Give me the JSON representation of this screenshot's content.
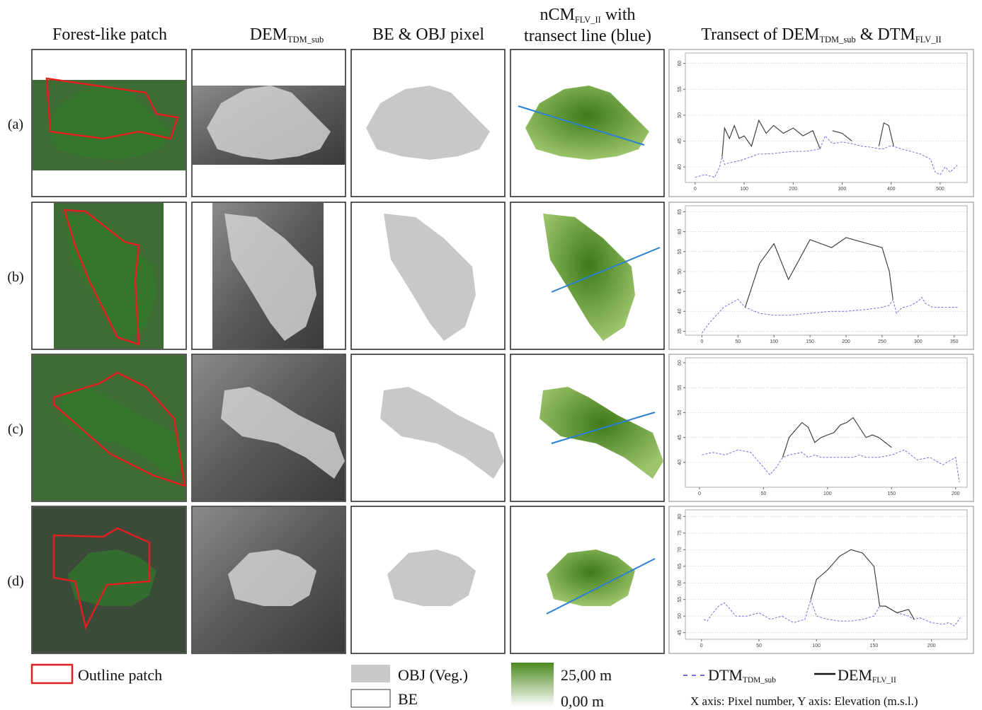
{
  "column_headers": [
    [
      [
        {
          "text": "Forest-like patch",
          "sub": false
        }
      ]
    ],
    [
      [
        {
          "text": "DEM",
          "sub": false
        },
        {
          "text": "TDM_sub",
          "sub": true
        }
      ]
    ],
    [
      [
        {
          "text": "BE & OBJ pixel",
          "sub": false
        }
      ]
    ],
    [
      [
        {
          "text": "nCM",
          "sub": false
        },
        {
          "text": "FLV_II",
          "sub": true
        },
        {
          "text": " with",
          "sub": false
        }
      ],
      [
        {
          "text": "transect line (blue)",
          "sub": false
        }
      ]
    ],
    [
      [
        {
          "text": "Transect of DEM",
          "sub": false
        },
        {
          "text": "TDM_sub",
          "sub": true
        },
        {
          "text": " & DTM",
          "sub": false
        },
        {
          "text": "FLV_II",
          "sub": true
        }
      ]
    ]
  ],
  "row_labels": [
    "(a)",
    "(b)",
    "(c)",
    "(d)"
  ],
  "chart_data": [
    {
      "type": "line",
      "grid": true,
      "x": [
        0,
        20,
        40,
        50,
        55,
        60,
        70,
        80,
        90,
        100,
        115,
        130,
        145,
        160,
        180,
        200,
        220,
        240,
        255,
        265,
        280,
        300,
        320,
        340,
        360,
        375,
        385,
        395,
        405,
        420,
        440,
        460,
        480,
        490,
        500,
        510,
        520,
        535
      ],
      "xlim": [
        -20,
        555
      ],
      "ylim": [
        37,
        62
      ],
      "xticks": [
        0,
        100,
        200,
        300,
        400,
        500
      ],
      "yticks": [
        40,
        45,
        50,
        55,
        60
      ],
      "series": [
        {
          "color": "#7070d8",
          "dashed": true,
          "values": [
            38,
            38.5,
            38,
            40,
            42,
            40.5,
            40.8,
            41,
            41.2,
            41.5,
            42,
            42.5,
            42.5,
            42.6,
            42.8,
            43,
            43,
            43.2,
            43.5,
            46,
            44.5,
            44.8,
            44.5,
            44,
            43.8,
            43.5,
            43.5,
            44,
            44,
            43.5,
            43,
            42.5,
            41.5,
            39,
            38.5,
            40,
            39,
            40.3
          ]
        },
        {
          "color": "#333333",
          "dashed": false,
          "values": [
            null,
            null,
            null,
            null,
            42,
            47.5,
            45.5,
            48,
            45.5,
            46,
            44,
            49,
            46.5,
            48,
            46.5,
            47.5,
            46,
            47,
            43.5,
            null,
            47,
            46.5,
            45,
            null,
            null,
            44,
            48.5,
            48,
            44,
            null,
            null,
            null,
            null,
            null,
            null,
            null,
            null,
            null
          ]
        }
      ]
    },
    {
      "type": "line",
      "grid": true,
      "x": [
        0,
        10,
        20,
        30,
        40,
        50,
        60,
        80,
        100,
        120,
        150,
        180,
        200,
        230,
        250,
        260,
        265,
        270,
        275,
        280,
        290,
        300,
        305,
        310,
        320,
        330,
        340,
        355
      ],
      "xlim": [
        -23,
        368
      ],
      "ylim": [
        34,
        66.5
      ],
      "xticks": [
        0,
        50,
        100,
        150,
        200,
        250,
        300,
        350
      ],
      "yticks": [
        35,
        40,
        45,
        50,
        55,
        60,
        65
      ],
      "series": [
        {
          "color": "#7070d8",
          "dashed": true,
          "values": [
            34.5,
            37,
            39,
            41,
            42,
            43,
            41,
            39.5,
            39,
            39,
            39.5,
            40,
            40,
            40.5,
            41,
            41.5,
            43,
            39.5,
            40.5,
            41,
            41.5,
            42.5,
            43.5,
            42,
            41,
            41,
            41,
            41
          ]
        },
        {
          "color": "#333333",
          "dashed": false,
          "values": [
            null,
            null,
            null,
            null,
            null,
            null,
            41,
            52,
            57,
            48,
            58,
            56,
            58.5,
            57,
            56,
            50,
            43,
            null,
            null,
            null,
            null,
            null,
            null,
            null,
            null,
            null,
            null,
            null
          ]
        }
      ]
    },
    {
      "type": "line",
      "grid": true,
      "x": [
        2,
        10,
        20,
        30,
        40,
        50,
        55,
        60,
        65,
        70,
        80,
        85,
        90,
        95,
        100,
        105,
        110,
        115,
        120,
        125,
        130,
        135,
        140,
        150,
        160,
        170,
        180,
        190,
        200,
        203
      ],
      "xlim": [
        -11,
        209
      ],
      "ylim": [
        35,
        61
      ],
      "xticks": [
        0,
        50,
        100,
        150,
        200
      ],
      "yticks": [
        40,
        45,
        50,
        55,
        60
      ],
      "series": [
        {
          "color": "#7070d8",
          "dashed": true,
          "values": [
            41.5,
            42,
            41.5,
            42.5,
            42,
            39,
            37.5,
            39,
            41,
            41.5,
            42,
            41,
            41.5,
            41,
            41,
            41,
            41,
            41,
            41,
            41.5,
            41,
            41,
            41,
            41.5,
            42.5,
            40.5,
            41,
            39.5,
            41,
            36
          ]
        },
        {
          "color": "#333333",
          "dashed": false,
          "values": [
            null,
            null,
            null,
            null,
            null,
            null,
            null,
            null,
            41,
            45,
            48,
            47,
            44,
            45,
            45.5,
            46,
            47.5,
            48,
            49,
            47,
            45,
            45.5,
            45,
            43,
            null,
            null,
            null,
            null,
            null,
            null
          ]
        }
      ]
    },
    {
      "type": "line",
      "grid": true,
      "x": [
        2,
        5,
        10,
        15,
        20,
        30,
        40,
        50,
        60,
        70,
        80,
        90,
        95,
        100,
        110,
        120,
        130,
        140,
        150,
        155,
        160,
        170,
        180,
        185,
        190,
        200,
        210,
        215,
        220,
        225
      ],
      "xlim": [
        -14,
        231
      ],
      "ylim": [
        43,
        82
      ],
      "xticks": [
        0,
        50,
        100,
        150,
        200
      ],
      "yticks": [
        45,
        50,
        55,
        60,
        65,
        70,
        75,
        80
      ],
      "series": [
        {
          "color": "#7070d8",
          "dashed": true,
          "values": [
            49,
            48.5,
            51,
            53,
            54,
            50,
            50,
            51,
            49,
            50,
            48,
            49,
            55,
            50,
            49,
            48.5,
            48.5,
            49,
            50,
            53,
            53,
            51,
            50,
            49,
            49.5,
            48,
            47.5,
            48,
            47,
            49.5
          ]
        },
        {
          "color": "#333333",
          "dashed": false,
          "values": [
            null,
            null,
            null,
            null,
            null,
            null,
            null,
            null,
            null,
            null,
            null,
            null,
            55,
            61,
            64,
            68,
            70,
            69,
            65,
            53,
            53,
            51,
            52,
            49,
            null,
            null,
            null,
            null,
            null,
            null
          ]
        }
      ]
    }
  ],
  "legend": {
    "outline_patch": "Outline patch",
    "obj": "OBJ (Veg.)",
    "be": "BE",
    "ncm_max": "25,00 m",
    "ncm_min": "0,00 m",
    "dtm": [
      {
        "text": "DTM",
        "sub": false
      },
      {
        "text": "TDM_sub",
        "sub": true
      }
    ],
    "dem": [
      {
        "text": "DEM",
        "sub": false
      },
      {
        "text": "FLV_II",
        "sub": true
      }
    ],
    "axes_note": "X axis: Pixel number,   Y axis: Elevation (m.s.l.)"
  }
}
